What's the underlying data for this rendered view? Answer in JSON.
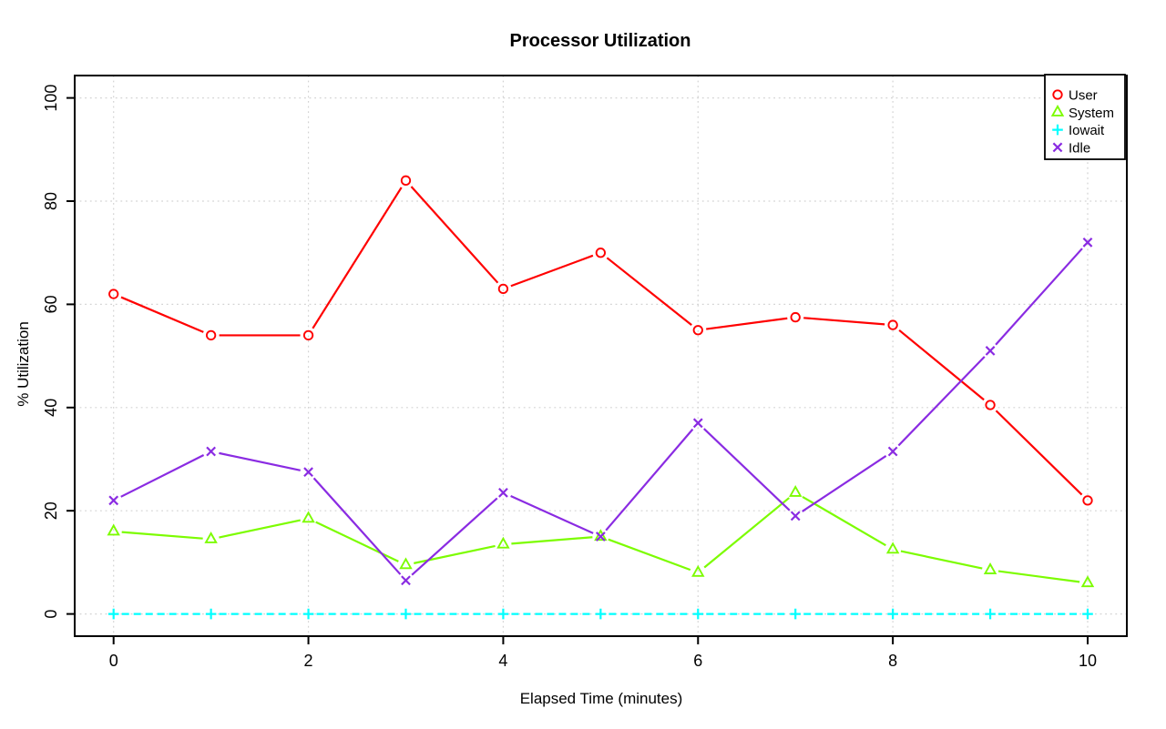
{
  "chart_data": {
    "type": "line",
    "title": "Processor Utilization",
    "xlabel": "Elapsed Time (minutes)",
    "ylabel": "% Utilization",
    "x": [
      0,
      1,
      2,
      3,
      4,
      5,
      6,
      7,
      8,
      9,
      10
    ],
    "xlim": [
      0,
      10
    ],
    "ylim": [
      0,
      100
    ],
    "x_tick_labels": [
      "0",
      "2",
      "4",
      "6",
      "8",
      "10"
    ],
    "x_tick_values": [
      0,
      2,
      4,
      6,
      8,
      10
    ],
    "y_tick_labels": [
      "0",
      "20",
      "40",
      "60",
      "80",
      "100"
    ],
    "y_tick_values": [
      0,
      20,
      40,
      60,
      80,
      100
    ],
    "grid": "dotted",
    "legend_position": "top-right",
    "series": [
      {
        "name": "User",
        "color": "#ff0000",
        "marker": "circle",
        "line_style": "solid",
        "values": [
          62,
          54,
          54,
          84,
          63,
          70,
          55,
          57.5,
          56,
          40.5,
          22
        ]
      },
      {
        "name": "System",
        "color": "#7cfc00",
        "marker": "triangle",
        "line_style": "solid",
        "values": [
          16,
          14.5,
          18.5,
          9.5,
          13.5,
          15,
          8,
          23.5,
          12.5,
          8.5,
          6
        ]
      },
      {
        "name": "Iowait",
        "color": "#00ffff",
        "marker": "plus",
        "line_style": "dashed",
        "values": [
          0,
          0,
          0,
          0,
          0,
          0,
          0,
          0,
          0,
          0,
          0
        ]
      },
      {
        "name": "Idle",
        "color": "#8a2be2",
        "marker": "x",
        "line_style": "solid",
        "values": [
          22,
          31.5,
          27.5,
          6.5,
          23.5,
          15,
          37,
          19,
          31.5,
          51,
          72
        ]
      }
    ]
  }
}
